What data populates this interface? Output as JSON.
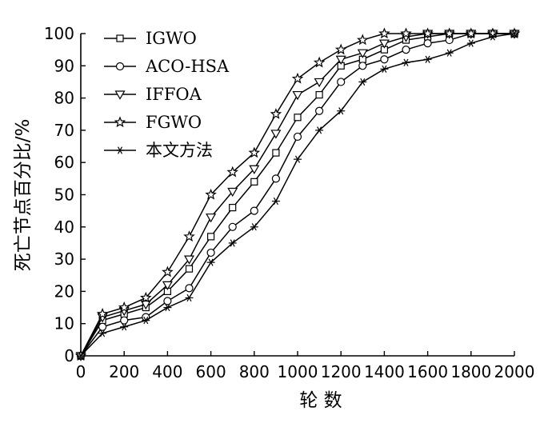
{
  "chart_data": {
    "type": "line",
    "xlabel": "轮 数",
    "ylabel": "死亡节点百分比/%",
    "xlim": [
      0,
      2000
    ],
    "ylim": [
      0,
      100
    ],
    "xticks": [
      0,
      200,
      400,
      600,
      800,
      1000,
      1200,
      1400,
      1600,
      1800,
      2000
    ],
    "yticks": [
      0,
      10,
      20,
      30,
      40,
      50,
      60,
      70,
      80,
      90,
      100
    ],
    "grid": false,
    "legend_position": "top-left",
    "series": [
      {
        "name": "IGWO",
        "marker": "square",
        "x": [
          0,
          100,
          200,
          300,
          400,
          500,
          600,
          700,
          800,
          900,
          1000,
          1100,
          1200,
          1300,
          1400,
          1500,
          1600,
          1700,
          1800,
          1900,
          2000
        ],
        "y": [
          0,
          11,
          13,
          15,
          20,
          27,
          37,
          46,
          54,
          63,
          74,
          81,
          90,
          92,
          95,
          98,
          99,
          100,
          100,
          100,
          100
        ]
      },
      {
        "name": "ACO-HSA",
        "marker": "circle",
        "x": [
          0,
          100,
          200,
          300,
          400,
          500,
          600,
          700,
          800,
          900,
          1000,
          1100,
          1200,
          1300,
          1400,
          1500,
          1600,
          1700,
          1800,
          1900,
          2000
        ],
        "y": [
          0,
          9,
          11,
          12,
          17,
          21,
          32,
          40,
          45,
          55,
          68,
          76,
          85,
          90,
          92,
          95,
          97,
          98,
          100,
          100,
          100
        ]
      },
      {
        "name": "IFFOA",
        "marker": "triangle-down",
        "x": [
          0,
          100,
          200,
          300,
          400,
          500,
          600,
          700,
          800,
          900,
          1000,
          1100,
          1200,
          1300,
          1400,
          1500,
          1600,
          1700,
          1800,
          1900,
          2000
        ],
        "y": [
          0,
          12,
          14,
          16,
          22,
          30,
          43,
          51,
          58,
          69,
          81,
          85,
          92,
          94,
          97,
          99,
          100,
          100,
          100,
          100,
          100
        ]
      },
      {
        "name": "FGWO",
        "marker": "star",
        "x": [
          0,
          100,
          200,
          300,
          400,
          500,
          600,
          700,
          800,
          900,
          1000,
          1100,
          1200,
          1300,
          1400,
          1500,
          1600,
          1700,
          1800,
          1900,
          2000
        ],
        "y": [
          0,
          13,
          15,
          18,
          26,
          37,
          50,
          57,
          63,
          75,
          86,
          91,
          95,
          98,
          100,
          100,
          100,
          100,
          100,
          100,
          100
        ]
      },
      {
        "name": "本文方法",
        "marker": "asterisk",
        "x": [
          0,
          100,
          200,
          300,
          400,
          500,
          600,
          700,
          800,
          900,
          1000,
          1100,
          1200,
          1300,
          1400,
          1500,
          1600,
          1700,
          1800,
          1900,
          2000
        ],
        "y": [
          0,
          7,
          9,
          11,
          15,
          18,
          29,
          35,
          40,
          48,
          61,
          70,
          76,
          85,
          89,
          91,
          92,
          94,
          97,
          99,
          100
        ]
      }
    ]
  }
}
